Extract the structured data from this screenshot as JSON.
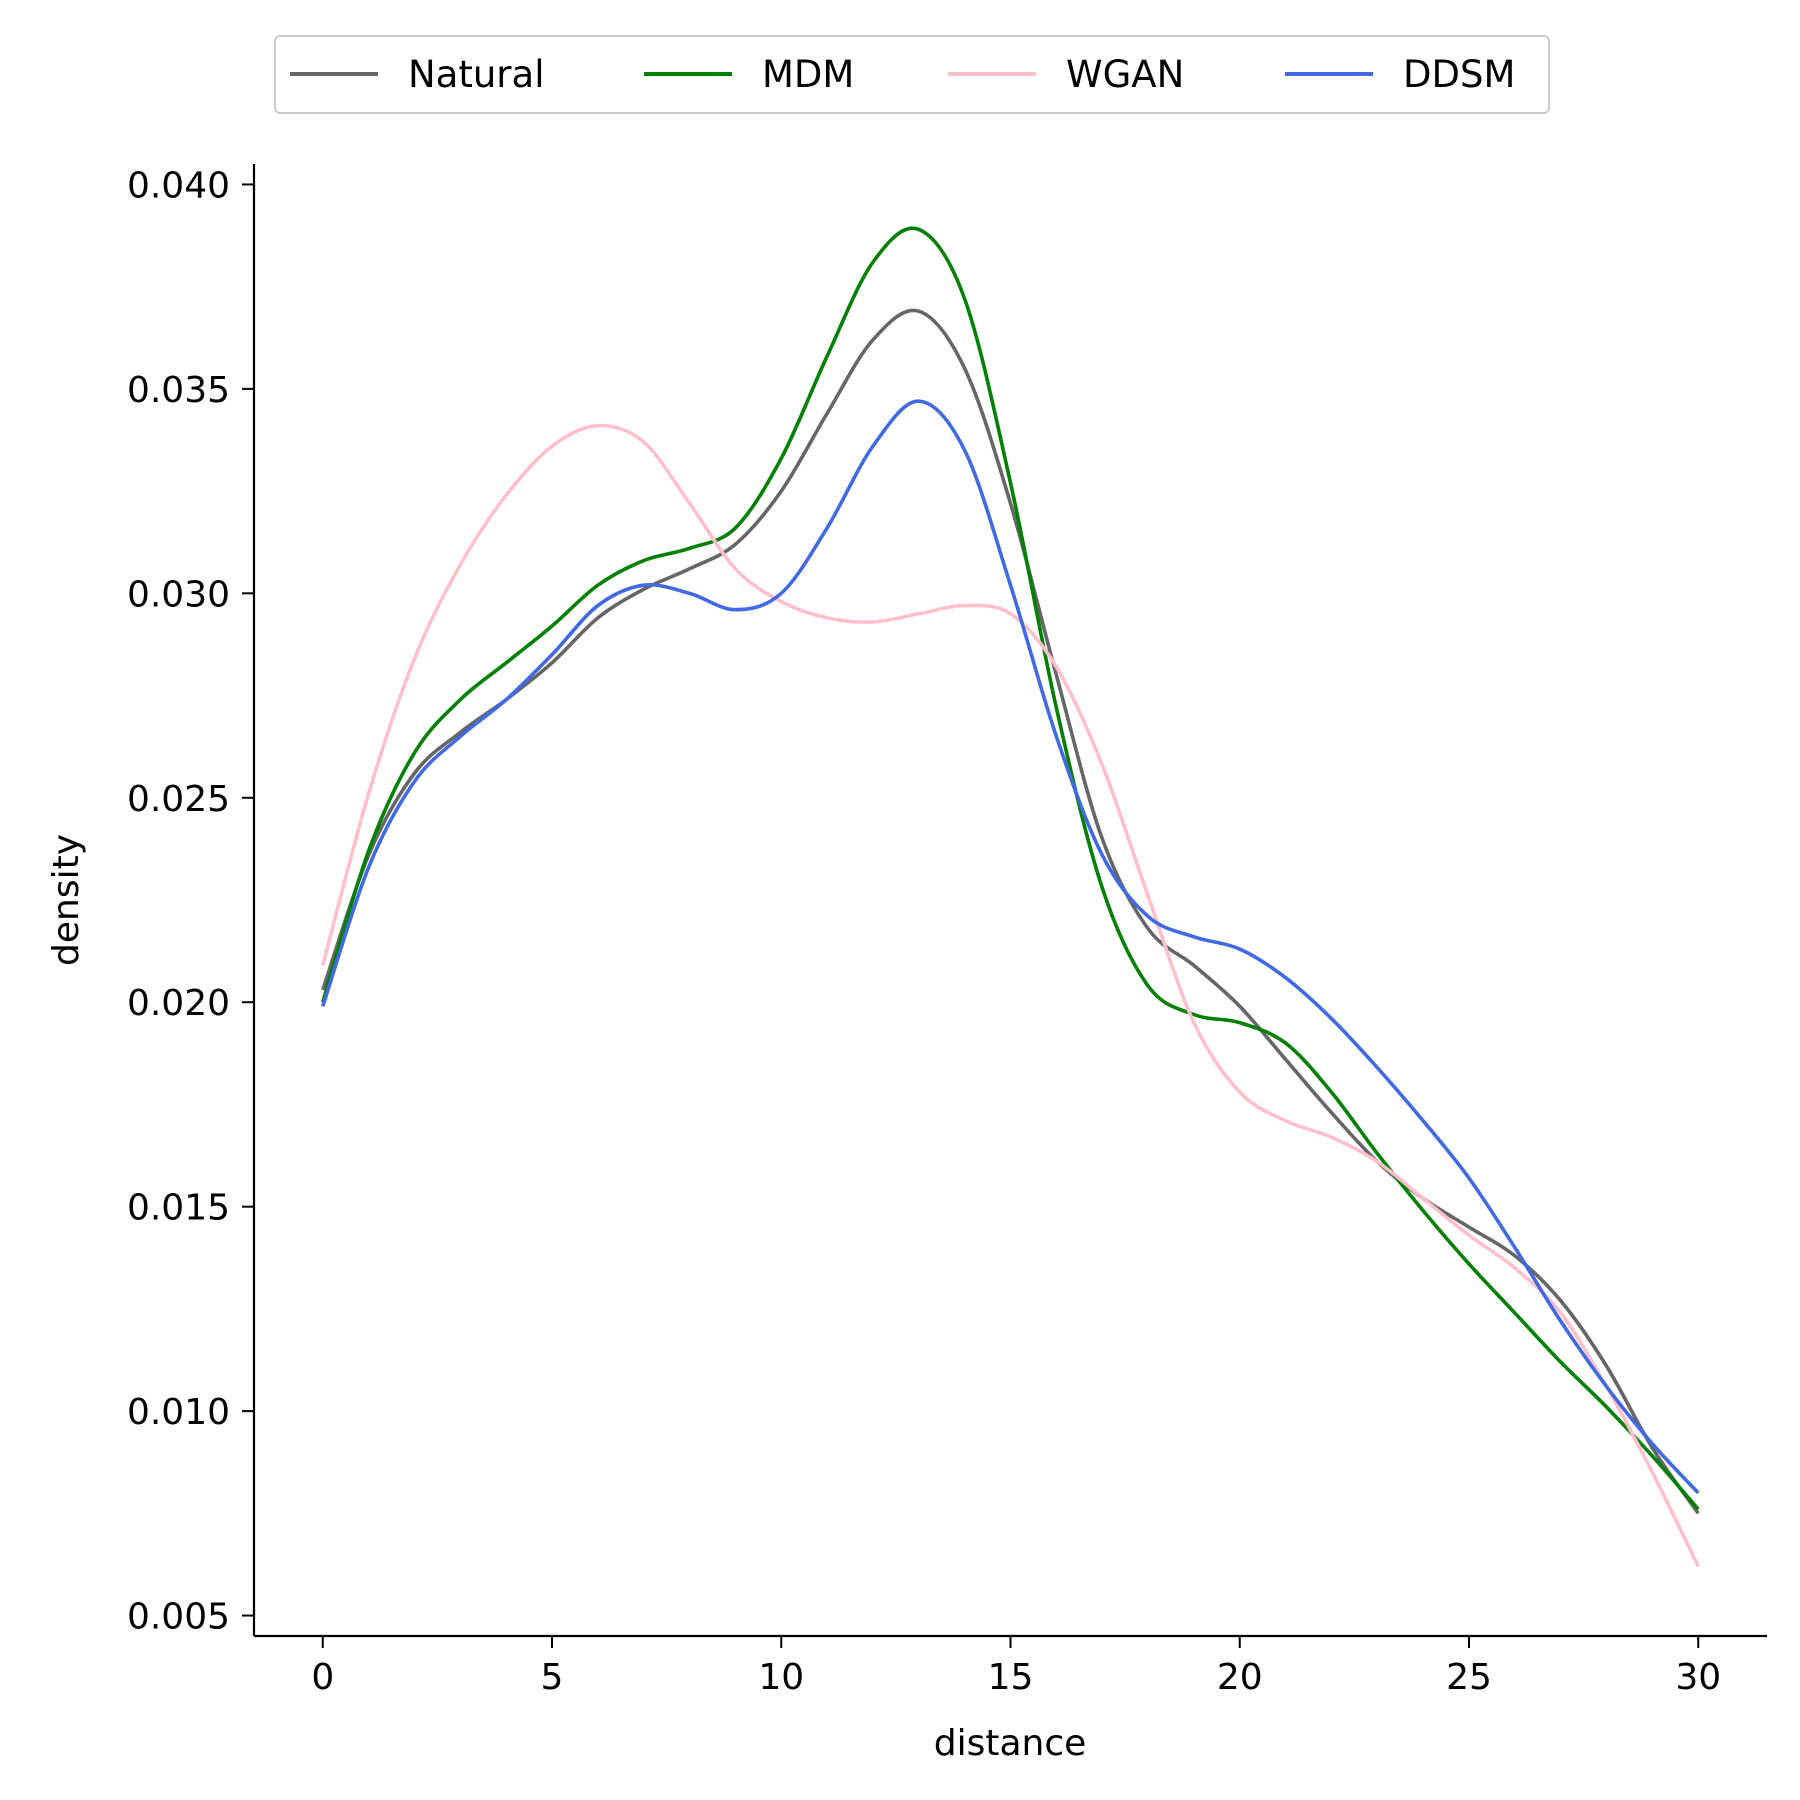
{
  "chart_data": {
    "type": "line",
    "title": "",
    "xlabel": "distance",
    "ylabel": "density",
    "xlim": [
      -1.5,
      31.5
    ],
    "ylim": [
      0.0045,
      0.0405
    ],
    "xticks": [
      "0",
      "5",
      "10",
      "15",
      "20",
      "25",
      "30"
    ],
    "yticks": [
      "0.005",
      "0.010",
      "0.015",
      "0.020",
      "0.025",
      "0.030",
      "0.035",
      "0.040"
    ],
    "grid": false,
    "legend": {
      "placement": "top-center, above plot",
      "columns": 4
    },
    "series": [
      {
        "name": "Natural",
        "color": "#666666",
        "points": [
          [
            0,
            0.0203
          ],
          [
            1,
            0.0236
          ],
          [
            2,
            0.0256
          ],
          [
            3,
            0.0266
          ],
          [
            4,
            0.0274
          ],
          [
            5,
            0.0283
          ],
          [
            6,
            0.0294
          ],
          [
            7,
            0.0301
          ],
          [
            8,
            0.0306
          ],
          [
            9,
            0.0312
          ],
          [
            10,
            0.0325
          ],
          [
            11,
            0.0344
          ],
          [
            12,
            0.0362
          ],
          [
            13,
            0.0369
          ],
          [
            14,
            0.0355
          ],
          [
            15,
            0.0322
          ],
          [
            16,
            0.028
          ],
          [
            17,
            0.024
          ],
          [
            18,
            0.0218
          ],
          [
            19,
            0.0209
          ],
          [
            20,
            0.0199
          ],
          [
            21,
            0.0186
          ],
          [
            22,
            0.0173
          ],
          [
            23,
            0.0161
          ],
          [
            24,
            0.0152
          ],
          [
            25,
            0.0145
          ],
          [
            26,
            0.0138
          ],
          [
            27,
            0.0127
          ],
          [
            28,
            0.0111
          ],
          [
            29,
            0.0091
          ],
          [
            30,
            0.0075
          ]
        ]
      },
      {
        "name": "MDM",
        "color": "#008000",
        "points": [
          [
            0,
            0.02
          ],
          [
            1,
            0.0237
          ],
          [
            2,
            0.0261
          ],
          [
            3,
            0.0274
          ],
          [
            4,
            0.0283
          ],
          [
            5,
            0.0292
          ],
          [
            6,
            0.0302
          ],
          [
            7,
            0.0308
          ],
          [
            8,
            0.0311
          ],
          [
            9,
            0.0316
          ],
          [
            10,
            0.0333
          ],
          [
            11,
            0.0358
          ],
          [
            12,
            0.0381
          ],
          [
            13,
            0.0389
          ],
          [
            14,
            0.0372
          ],
          [
            15,
            0.0327
          ],
          [
            16,
            0.0272
          ],
          [
            17,
            0.0228
          ],
          [
            18,
            0.0204
          ],
          [
            19,
            0.0197
          ],
          [
            20,
            0.0195
          ],
          [
            21,
            0.019
          ],
          [
            22,
            0.0178
          ],
          [
            23,
            0.0163
          ],
          [
            24,
            0.0149
          ],
          [
            25,
            0.0136
          ],
          [
            26,
            0.0124
          ],
          [
            27,
            0.0112
          ],
          [
            28,
            0.0101
          ],
          [
            29,
            0.0089
          ],
          [
            30,
            0.0076
          ]
        ]
      },
      {
        "name": "WGAN",
        "color": "#ffc0cb",
        "points": [
          [
            0,
            0.0209
          ],
          [
            1,
            0.0251
          ],
          [
            2,
            0.0284
          ],
          [
            3,
            0.0307
          ],
          [
            4,
            0.0324
          ],
          [
            5,
            0.0336
          ],
          [
            6,
            0.0341
          ],
          [
            7,
            0.0337
          ],
          [
            8,
            0.0322
          ],
          [
            9,
            0.0306
          ],
          [
            10,
            0.0298
          ],
          [
            11,
            0.0294
          ],
          [
            12,
            0.0293
          ],
          [
            13,
            0.0295
          ],
          [
            14,
            0.0297
          ],
          [
            15,
            0.0295
          ],
          [
            16,
            0.0282
          ],
          [
            17,
            0.0258
          ],
          [
            18,
            0.0226
          ],
          [
            19,
            0.0195
          ],
          [
            20,
            0.0178
          ],
          [
            21,
            0.0171
          ],
          [
            22,
            0.0167
          ],
          [
            23,
            0.0161
          ],
          [
            24,
            0.0152
          ],
          [
            25,
            0.0143
          ],
          [
            26,
            0.0135
          ],
          [
            27,
            0.0124
          ],
          [
            28,
            0.0106
          ],
          [
            29,
            0.0085
          ],
          [
            30,
            0.0062
          ]
        ]
      },
      {
        "name": "DDSM",
        "color": "#4169e1",
        "points": [
          [
            0,
            0.0199
          ],
          [
            1,
            0.0233
          ],
          [
            2,
            0.0254
          ],
          [
            3,
            0.0265
          ],
          [
            4,
            0.0274
          ],
          [
            5,
            0.0285
          ],
          [
            6,
            0.0297
          ],
          [
            7,
            0.0302
          ],
          [
            8,
            0.03
          ],
          [
            9,
            0.0296
          ],
          [
            10,
            0.03
          ],
          [
            11,
            0.0316
          ],
          [
            12,
            0.0336
          ],
          [
            13,
            0.0347
          ],
          [
            14,
            0.0335
          ],
          [
            15,
            0.0302
          ],
          [
            16,
            0.0265
          ],
          [
            17,
            0.0236
          ],
          [
            18,
            0.0221
          ],
          [
            19,
            0.0216
          ],
          [
            20,
            0.0213
          ],
          [
            21,
            0.0206
          ],
          [
            22,
            0.0196
          ],
          [
            23,
            0.0184
          ],
          [
            24,
            0.0171
          ],
          [
            25,
            0.0157
          ],
          [
            26,
            0.014
          ],
          [
            27,
            0.0122
          ],
          [
            28,
            0.0106
          ],
          [
            29,
            0.0092
          ],
          [
            30,
            0.008
          ]
        ]
      }
    ]
  }
}
